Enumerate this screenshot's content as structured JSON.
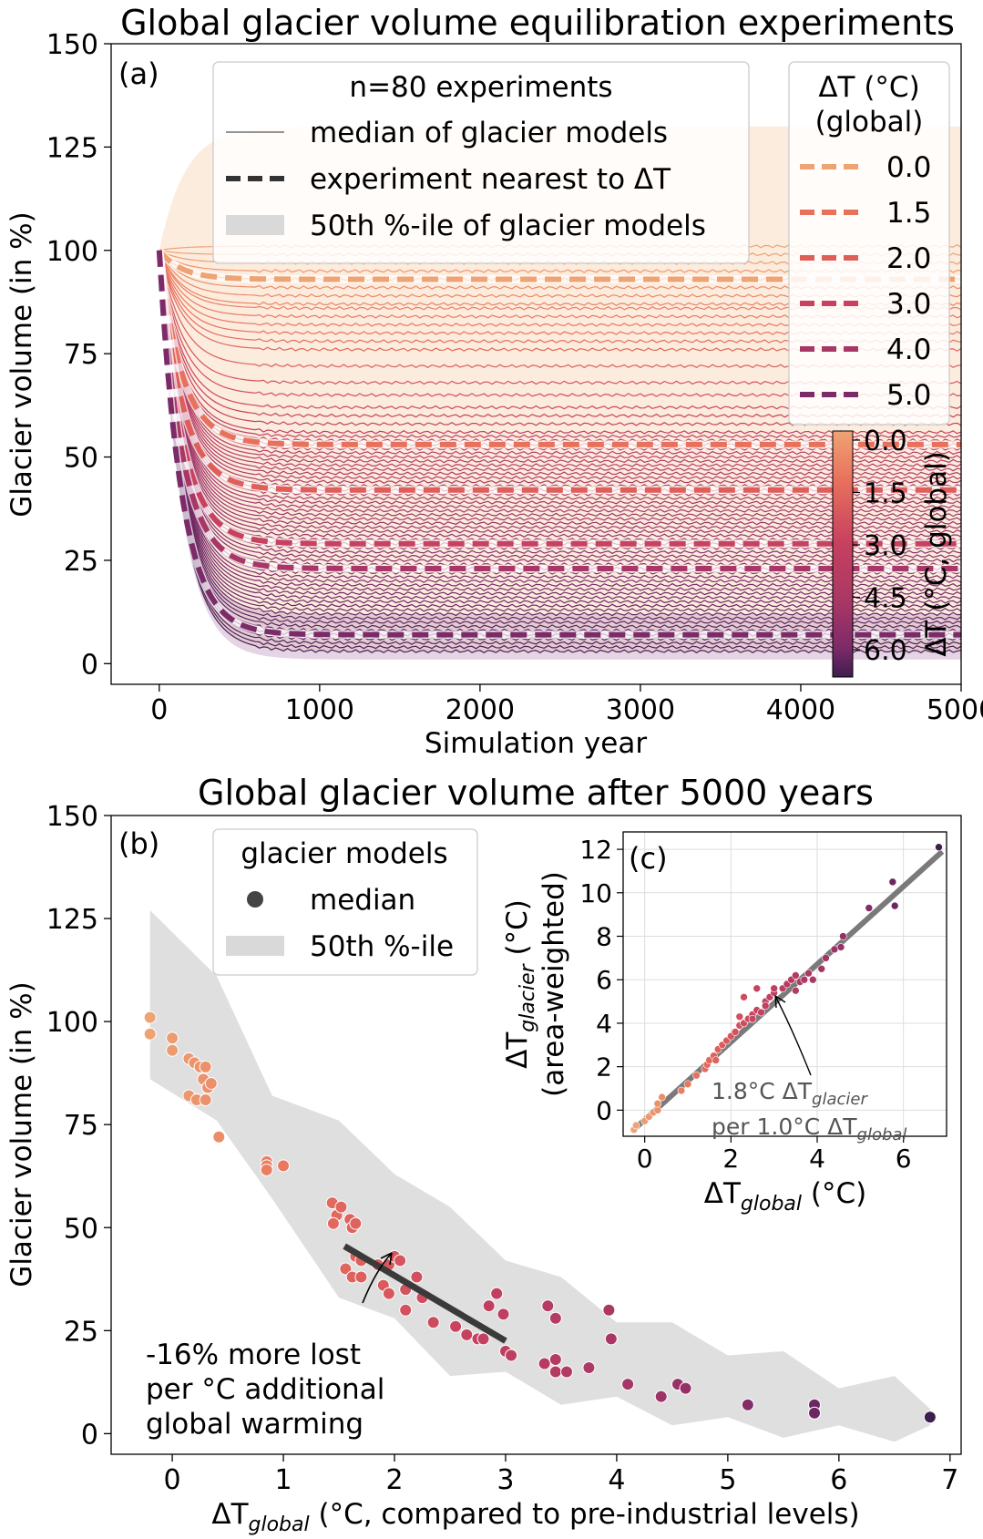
{
  "colors": {
    "dt0": "#eea374",
    "dt15": "#e8715c",
    "dt2": "#de5f5a",
    "dt3": "#c8415f",
    "dt4": "#a83765",
    "dt5": "#7d2a69",
    "band_a": "#fbe7d6",
    "band_b": "#d9d9d9",
    "trend": "#3a3a3a",
    "fit_c": "#7a7a7a"
  },
  "panel_a": {
    "title": "Global glacier volume equilibration experiments",
    "tag": "(a)",
    "xlabel": "Simulation year",
    "ylabel": "Glacier volume (in %)",
    "legend": {
      "header": "n=80 experiments",
      "median": "median of glacier models",
      "nearest": "experiment nearest to ΔT",
      "band": "50th %-ile of glacier models"
    },
    "dt_legend": {
      "title_line1": "ΔT (°C)",
      "title_line2": "(global)",
      "items": [
        "0.0",
        "1.5",
        "2.0",
        "3.0",
        "4.0",
        "5.0"
      ]
    },
    "colorbar": {
      "label": "ΔT (°C, global)",
      "ticks": [
        "0.0",
        "1.5",
        "3.0",
        "4.5",
        "6.0"
      ]
    }
  },
  "panel_b": {
    "title": "Global glacier volume after 5000 years",
    "tag": "(b)",
    "xlabel_pre": "ΔT",
    "xlabel_sub": "global",
    "xlabel_post": " (°C, compared to pre-industrial levels)",
    "ylabel": "Glacier volume (in %)",
    "legend": {
      "header": "glacier models",
      "median": "median",
      "band": "50th %-ile"
    },
    "annotation": [
      "-16% more lost",
      "per °C additional",
      "global warming"
    ]
  },
  "panel_c": {
    "tag": "(c)",
    "xlabel_pre": "ΔT",
    "xlabel_sub": "global",
    "xlabel_post": " (°C)",
    "ylabel_pre": "ΔT",
    "ylabel_sub": "glacier",
    "ylabel_post": " (°C)",
    "ylabel2": "(area-weighted)",
    "annotation1_pre": "1.8°C ΔT",
    "annotation1_sub": "glacier",
    "annotation2_pre": "per 1.0°C ΔT",
    "annotation2_sub": "global"
  },
  "chart_data": [
    {
      "type": "line",
      "title": "Global glacier volume equilibration experiments",
      "xlabel": "Simulation year",
      "ylabel": "Glacier volume (in %)",
      "xlim": [
        -300,
        5000
      ],
      "ylim": [
        -5,
        150
      ],
      "xticks": [
        0,
        1000,
        2000,
        3000,
        4000,
        5000
      ],
      "yticks": [
        0,
        25,
        50,
        75,
        100,
        125,
        150
      ],
      "nearest_experiments": [
        {
          "dT": "0.0",
          "final": 93
        },
        {
          "dT": "1.5",
          "final": 53
        },
        {
          "dT": "2.0",
          "final": 42
        },
        {
          "dT": "3.0",
          "final": 29
        },
        {
          "dT": "4.0",
          "final": 23
        },
        {
          "dT": "5.0",
          "final": 7
        }
      ],
      "median_finals": [
        101,
        99,
        97,
        95,
        93,
        91,
        89,
        87,
        86,
        84,
        82,
        80,
        78,
        76,
        72,
        68,
        65,
        62,
        60,
        58,
        56,
        55,
        54,
        53,
        52,
        51,
        50,
        49,
        48,
        47,
        46,
        45,
        44,
        43,
        42,
        41,
        40,
        39,
        38,
        37,
        36,
        35,
        34,
        33,
        32,
        31,
        30,
        29,
        28,
        27,
        26,
        25,
        24,
        23,
        22,
        21,
        20,
        19,
        18,
        17,
        16,
        15,
        14,
        13,
        12,
        11,
        10,
        9,
        8,
        7,
        6,
        5,
        4,
        3
      ],
      "band": {
        "upper_final": 130,
        "lower_final": 3
      }
    },
    {
      "type": "scatter",
      "title": "Global glacier volume after 5000 years",
      "xlabel": "ΔTglobal (°C, compared to pre-industrial levels)",
      "ylabel": "Glacier volume (in %)",
      "xlim": [
        -0.55,
        7.1
      ],
      "ylim": [
        -5,
        150
      ],
      "points": [
        [
          -0.2,
          101
        ],
        [
          -0.2,
          97
        ],
        [
          0.0,
          96
        ],
        [
          0.0,
          93
        ],
        [
          0.15,
          91
        ],
        [
          0.2,
          90
        ],
        [
          0.25,
          89
        ],
        [
          0.3,
          89
        ],
        [
          0.15,
          82
        ],
        [
          0.22,
          81
        ],
        [
          0.3,
          81
        ],
        [
          0.28,
          86
        ],
        [
          0.32,
          84
        ],
        [
          0.35,
          85
        ],
        [
          0.42,
          72
        ],
        [
          0.85,
          66
        ],
        [
          0.85,
          65
        ],
        [
          0.85,
          64
        ],
        [
          1.0,
          65
        ],
        [
          1.44,
          56
        ],
        [
          1.48,
          53
        ],
        [
          1.45,
          51
        ],
        [
          1.52,
          55
        ],
        [
          1.6,
          52
        ],
        [
          1.62,
          50
        ],
        [
          1.65,
          51
        ],
        [
          1.56,
          40
        ],
        [
          1.62,
          38
        ],
        [
          1.65,
          43
        ],
        [
          1.7,
          42
        ],
        [
          1.7,
          38
        ],
        [
          1.85,
          41
        ],
        [
          1.95,
          41
        ],
        [
          2.0,
          43
        ],
        [
          2.05,
          42
        ],
        [
          1.9,
          36
        ],
        [
          1.95,
          34
        ],
        [
          2.1,
          35
        ],
        [
          2.2,
          38
        ],
        [
          2.25,
          33
        ],
        [
          2.1,
          30
        ],
        [
          2.35,
          27
        ],
        [
          2.55,
          26
        ],
        [
          2.65,
          24
        ],
        [
          2.75,
          23
        ],
        [
          2.8,
          23
        ],
        [
          2.85,
          31
        ],
        [
          2.92,
          34
        ],
        [
          2.98,
          29
        ],
        [
          3.0,
          20
        ],
        [
          3.05,
          19
        ],
        [
          3.35,
          17
        ],
        [
          3.38,
          31
        ],
        [
          3.45,
          28
        ],
        [
          3.45,
          15
        ],
        [
          3.45,
          18
        ],
        [
          3.55,
          15
        ],
        [
          3.75,
          16
        ],
        [
          3.93,
          30
        ],
        [
          3.95,
          23
        ],
        [
          4.1,
          12
        ],
        [
          4.4,
          9
        ],
        [
          4.55,
          12
        ],
        [
          4.62,
          11
        ],
        [
          5.18,
          7
        ],
        [
          5.78,
          7
        ],
        [
          5.78,
          5
        ],
        [
          6.82,
          4
        ]
      ],
      "trend": {
        "x": [
          1.55,
          3.0
        ],
        "y": [
          45.5,
          22.5
        ],
        "slope": -16
      },
      "band": {
        "x": [
          -0.2,
          0.4,
          0.9,
          1.5,
          2.0,
          2.5,
          3.0,
          3.5,
          4.0,
          4.5,
          5.0,
          5.5,
          6.0,
          6.5,
          6.82
        ],
        "upper": [
          130,
          108,
          85,
          73,
          66,
          52,
          45,
          35,
          30,
          24,
          22,
          17,
          14,
          11,
          9
        ],
        "lower": [
          84,
          78,
          55,
          35,
          26,
          16,
          13,
          9,
          7,
          4,
          2,
          1,
          0,
          0,
          0
        ]
      }
    },
    {
      "type": "scatter",
      "xlabel": "ΔTglobal (°C)",
      "ylabel": "ΔTglacier (°C) (area-weighted)",
      "xlim": [
        -0.5,
        7.0
      ],
      "ylim": [
        -1.2,
        12.8
      ],
      "xticks": [
        0,
        2,
        4,
        6
      ],
      "yticks": [
        0,
        2,
        4,
        6,
        8,
        10,
        12
      ],
      "fit": {
        "x": [
          -0.2,
          6.9
        ],
        "y": [
          -0.8,
          11.9
        ],
        "slope": 1.8
      },
      "points": [
        [
          -0.25,
          -0.9
        ],
        [
          -0.2,
          -0.7
        ],
        [
          0.0,
          -0.5
        ],
        [
          0.1,
          -0.3
        ],
        [
          0.2,
          -0.1
        ],
        [
          0.3,
          0.0
        ],
        [
          0.3,
          0.3
        ],
        [
          0.4,
          0.6
        ],
        [
          0.85,
          0.9
        ],
        [
          1.0,
          1.2
        ],
        [
          1.2,
          1.6
        ],
        [
          1.4,
          1.9
        ],
        [
          1.45,
          2.1
        ],
        [
          1.5,
          2.3
        ],
        [
          1.6,
          2.5
        ],
        [
          1.65,
          2.3
        ],
        [
          1.7,
          2.8
        ],
        [
          1.8,
          3.0
        ],
        [
          1.9,
          3.2
        ],
        [
          2.0,
          3.4
        ],
        [
          2.1,
          3.6
        ],
        [
          2.2,
          3.9
        ],
        [
          2.3,
          4.0
        ],
        [
          2.4,
          4.2
        ],
        [
          2.5,
          4.4
        ],
        [
          2.6,
          4.6
        ],
        [
          2.7,
          4.5
        ],
        [
          2.8,
          5.0
        ],
        [
          2.9,
          5.2
        ],
        [
          3.0,
          5.4
        ],
        [
          3.2,
          5.6
        ],
        [
          3.3,
          5.8
        ],
        [
          3.4,
          6.0
        ],
        [
          3.5,
          5.5
        ],
        [
          3.6,
          5.9
        ],
        [
          3.8,
          6.3
        ],
        [
          3.9,
          6.0
        ],
        [
          4.1,
          6.5
        ],
        [
          4.2,
          7.0
        ],
        [
          4.4,
          7.4
        ],
        [
          4.55,
          7.5
        ],
        [
          4.6,
          8.0
        ],
        [
          5.2,
          9.3
        ],
        [
          5.75,
          10.5
        ],
        [
          5.8,
          9.4
        ],
        [
          6.82,
          12.1
        ],
        [
          2.2,
          4.3
        ],
        [
          2.5,
          4.2
        ],
        [
          2.8,
          4.8
        ],
        [
          3.0,
          5.6
        ],
        [
          3.5,
          6.2
        ],
        [
          3.7,
          6.0
        ],
        [
          2.3,
          5.2
        ],
        [
          2.6,
          5.6
        ]
      ]
    }
  ]
}
